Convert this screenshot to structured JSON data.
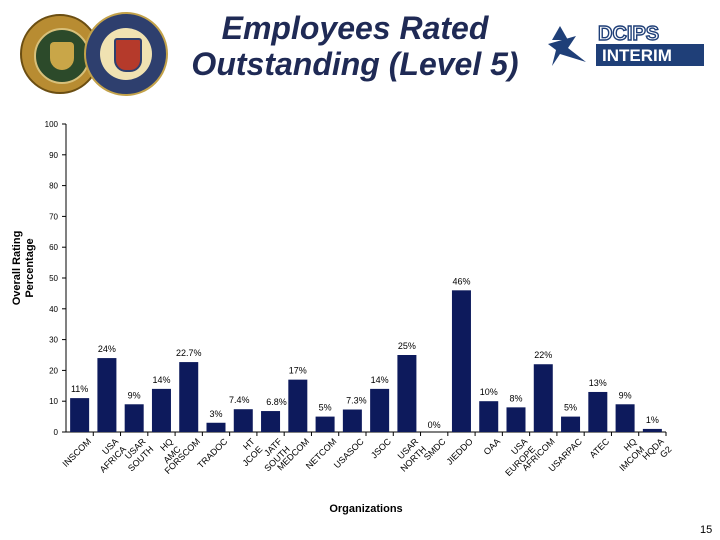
{
  "slide": {
    "title_line1": "Employees Rated",
    "title_line2": "Outstanding (Level 5)",
    "logo_line1": "DCIPS",
    "logo_line2": "INTERIM",
    "page_number": "15"
  },
  "chart_data": {
    "type": "bar",
    "title": "Employees Rated Outstanding (Level 5)",
    "xlabel": "Organizations",
    "ylabel_line1": "Overall Rating",
    "ylabel_line2": "Percentage",
    "ylim": [
      0,
      100
    ],
    "yticks": [
      0,
      10,
      20,
      30,
      40,
      50,
      60,
      70,
      80,
      90,
      100
    ],
    "grid": false,
    "legend": "none",
    "bar_color": "#0d1a5c",
    "categories": [
      "INSCOM",
      "USA AFRICA",
      "USAR SOUTH",
      "HQ AMC",
      "FORSCOM",
      "TRADOC",
      "HT JCOE",
      "JATF SOUTH",
      "MEDCOM",
      "NETCOM",
      "USASOC",
      "JSOC",
      "USAR NORTH",
      "SMDC",
      "JIEDDO",
      "OAA",
      "USA EUROPE",
      "AFRICOM",
      "USARPAC",
      "ATEC",
      "HQ IMCOM",
      "HQDA G2"
    ],
    "values": [
      11,
      24,
      9,
      14,
      22.7,
      3,
      7.4,
      6.8,
      17,
      5,
      7.3,
      14,
      25,
      0,
      46,
      10,
      8,
      22,
      5,
      13,
      9,
      1
    ],
    "labels": [
      "11%",
      "24%",
      "9%",
      "14%",
      "22.7%",
      "3%",
      "7.4%",
      "6.8%",
      "17%",
      "5%",
      "7.3%",
      "14%",
      "25%",
      "0%",
      "46%",
      "10%",
      "8%",
      "22%",
      "5%",
      "13%",
      "9%",
      "1%"
    ]
  }
}
